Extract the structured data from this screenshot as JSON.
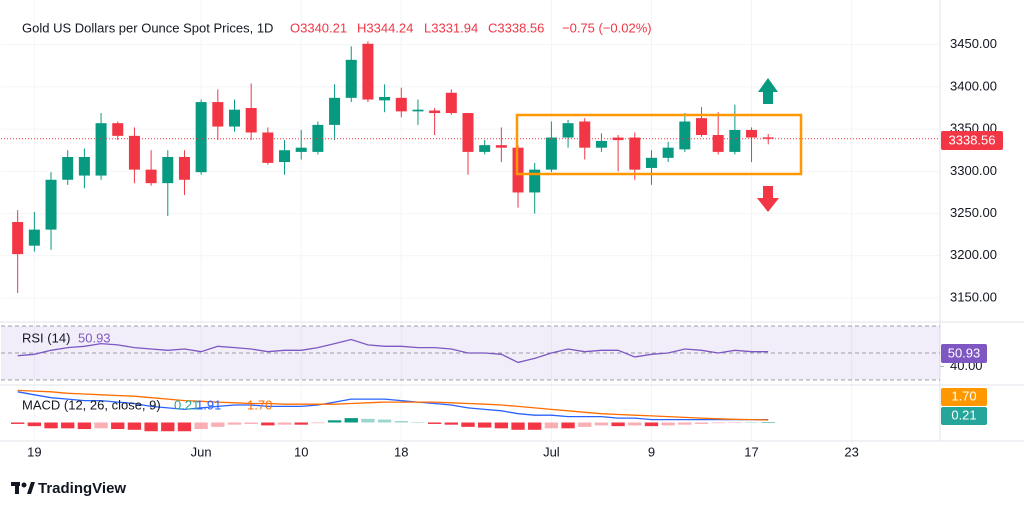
{
  "chart_data": [
    {
      "type": "candlestick",
      "title": "Gold US Dollars per Ounce Spot Prices, 1D",
      "legend_values": [
        "O3340.21",
        "H3344.24",
        "L3331.94",
        "C3338.56"
      ],
      "change_label": "−0.75 (−0.02%)",
      "open": [
        3240,
        3212,
        3231,
        3290,
        3295,
        3295,
        3357,
        3342,
        3302,
        3286,
        3317,
        3299,
        3382,
        3353,
        3375,
        3346,
        3311,
        3323,
        3323,
        3355,
        3387,
        3451,
        3384,
        3387,
        3371,
        3372,
        3393,
        3369,
        3323,
        3331,
        3328,
        3275,
        3302,
        3340,
        3359,
        3328,
        3340,
        3340,
        3304,
        3316,
        3326,
        3363,
        3343,
        3323,
        3349,
        3340.21
      ],
      "high": [
        3254,
        3252,
        3299,
        3325,
        3327,
        3369,
        3359,
        3352,
        3325,
        3325,
        3325,
        3385,
        3397,
        3385,
        3404,
        3352,
        3337,
        3349,
        3359,
        3403,
        3448,
        3454,
        3403,
        3399,
        3385,
        3375,
        3397,
        3369,
        3337,
        3352,
        3331,
        3310,
        3359,
        3361,
        3363,
        3345,
        3343,
        3346,
        3325,
        3335,
        3369,
        3376,
        3370,
        3379,
        3352,
        3344.24
      ],
      "low": [
        3156,
        3205,
        3207,
        3284,
        3280,
        3290,
        3337,
        3286,
        3283,
        3247,
        3272,
        3296,
        3337,
        3347,
        3337,
        3308,
        3296,
        3314,
        3320,
        3337,
        3382,
        3382,
        3370,
        3364,
        3355,
        3343,
        3367,
        3296,
        3320,
        3311,
        3257,
        3250,
        3299,
        3328,
        3314,
        3323,
        3300,
        3290,
        3284,
        3311,
        3323,
        3341,
        3320,
        3320,
        3311,
        3331.94
      ],
      "close": [
        3202,
        3231,
        3290,
        3317,
        3317,
        3357,
        3342,
        3302,
        3286,
        3317,
        3290,
        3382,
        3353,
        3373,
        3346,
        3310,
        3325,
        3328,
        3355,
        3387,
        3432,
        3385,
        3388,
        3371,
        3373,
        3369,
        3369,
        3323,
        3331,
        3328,
        3275,
        3302,
        3340,
        3357,
        3328,
        3336,
        3337,
        3302,
        3316,
        3328,
        3359,
        3343,
        3323,
        3349,
        3340,
        3338.56
      ],
      "up_color": "#089981",
      "down_color": "#f23645",
      "xlim": [
        -1,
        55.3
      ],
      "xticks": [
        {
          "value": 1,
          "label": "19"
        },
        {
          "value": 11,
          "label": "Jun"
        },
        {
          "value": 17,
          "label": "10"
        },
        {
          "value": 23,
          "label": "18"
        },
        {
          "value": 32,
          "label": "Jul"
        },
        {
          "value": 38,
          "label": "9"
        },
        {
          "value": 44,
          "label": "17"
        },
        {
          "value": 50,
          "label": "23"
        }
      ],
      "ylim": [
        3124,
        3491
      ],
      "yticks": [
        {
          "value": 3150,
          "label": "3150.00"
        },
        {
          "value": 3200,
          "label": "3200.00"
        },
        {
          "value": 3250,
          "label": "3250.00"
        },
        {
          "value": 3300,
          "label": "3300.00"
        },
        {
          "value": 3350,
          "label": "3350.00"
        },
        {
          "value": 3400,
          "label": "3400.00"
        },
        {
          "value": 3450,
          "label": "3450.00"
        }
      ]
    },
    {
      "type": "line",
      "title": "RSI (14)",
      "color": "#7e57c2",
      "values": [
        48,
        49,
        52,
        54,
        55,
        57,
        56,
        54,
        53,
        52,
        53,
        51,
        55,
        54,
        53,
        51,
        52,
        52,
        54,
        57,
        60,
        56,
        55,
        55,
        54,
        54,
        53,
        50,
        50,
        49,
        43,
        46,
        50,
        53,
        51,
        52,
        52,
        47,
        49,
        50,
        53,
        52,
        50,
        52,
        51,
        50.93
      ],
      "levels": [
        70,
        50,
        30
      ],
      "ylim": [
        27,
        73
      ],
      "yticks": [
        {
          "value": 40,
          "label": "40.00"
        }
      ]
    },
    {
      "type": "macd",
      "title": "MACD (12, 26, close, 9)",
      "legend_labels": [
        "0.21",
        "1.91",
        "1.70"
      ],
      "histogram": [
        -1,
        -2.5,
        -4,
        -4,
        -4.5,
        -4,
        -4.5,
        -5,
        -6,
        -6,
        -6,
        -4.5,
        -3,
        -1.5,
        -1,
        -2,
        -1.5,
        -1.5,
        -0.5,
        1.5,
        3,
        2.5,
        2,
        1,
        0,
        -1,
        -1.5,
        -3,
        -3.5,
        -4,
        -5,
        -5,
        -4,
        -4,
        -3,
        -2,
        -2.5,
        -2,
        -2.5,
        -2,
        -1.5,
        -1,
        -0.5,
        -0.2,
        0,
        0.21
      ],
      "macd": [
        21,
        19,
        17,
        16,
        15,
        15,
        14,
        13,
        11,
        10,
        9,
        10,
        11,
        12,
        12,
        11,
        11,
        11,
        12,
        14,
        16,
        16,
        16,
        15,
        14,
        13,
        12,
        10,
        9,
        8,
        6,
        5,
        5,
        4,
        4,
        4,
        3,
        3,
        2,
        2,
        2,
        2,
        2,
        2,
        2,
        1.91
      ],
      "signal": [
        22,
        21.5,
        21,
        20,
        19.5,
        19,
        18.5,
        18,
        17,
        16,
        15,
        14.5,
        14,
        13.5,
        13,
        13,
        12.5,
        12.5,
        12.5,
        12.5,
        13,
        13.5,
        14,
        14,
        14,
        14,
        13.5,
        13,
        12.5,
        12,
        11,
        10,
        9,
        8,
        7,
        6,
        5.5,
        5,
        4.5,
        4,
        3.5,
        3,
        2.5,
        2.2,
        2,
        1.7
      ],
      "macd_color": "#2962ff",
      "signal_color": "#ff6d00",
      "up_color": "#089981",
      "down_color": "#f23645",
      "ylim": [
        -12,
        25
      ]
    }
  ],
  "brand": "TradingView"
}
